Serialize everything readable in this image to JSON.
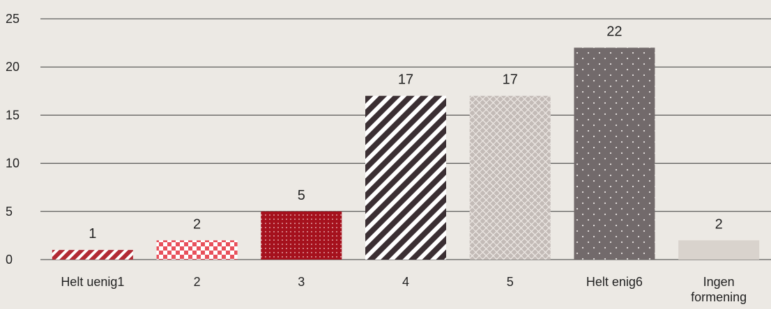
{
  "chart_data": {
    "type": "bar",
    "categories": [
      "Helt uenig1",
      "2",
      "3",
      "4",
      "5",
      "Helt enig6",
      "Ingen formening"
    ],
    "values": [
      1,
      2,
      5,
      17,
      17,
      22,
      2
    ],
    "ylim": [
      0,
      25
    ],
    "yticks": [
      0,
      5,
      10,
      15,
      20,
      25
    ],
    "title": "",
    "xlabel": "",
    "ylabel": "",
    "grid": true,
    "bar_colors": [
      "#b22a34",
      "#e8505b",
      "#a5111d",
      "#3b2f33",
      "#c3bbb7",
      "#726a6b",
      "#d9d3cd"
    ],
    "bar_patterns": [
      "diagonal-stripes",
      "checker",
      "dots",
      "diagonal-stripes",
      "weave",
      "dots",
      "solid"
    ]
  }
}
